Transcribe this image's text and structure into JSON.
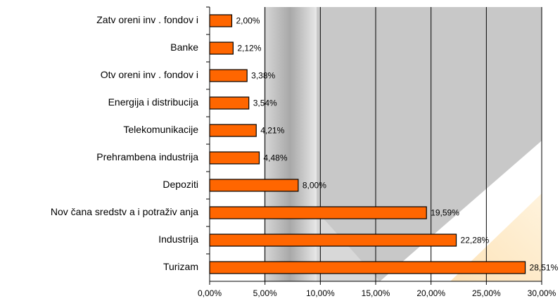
{
  "chart_data": {
    "type": "bar",
    "orientation": "horizontal",
    "categories": [
      "Zatv oreni inv . fondov i",
      "Banke",
      "Otv oreni inv . fondov i",
      "Energija i distribucija",
      "Telekomunikacije",
      "Prehrambena industrija",
      "Depoziti",
      "Nov čana sredstv a i potraživ anja",
      "Industrija",
      "Turizam"
    ],
    "values": [
      2.0,
      2.12,
      3.38,
      3.54,
      4.21,
      4.48,
      8.0,
      19.59,
      22.28,
      28.51
    ],
    "value_labels": [
      "2,00%",
      "2,12%",
      "3,38%",
      "3,54%",
      "4,21%",
      "4,48%",
      "8,00%",
      "19,59%",
      "22,28%",
      "28,51%"
    ],
    "color": "#ff6600",
    "xlim": [
      0,
      30
    ],
    "xticks": [
      {
        "value": 0,
        "label": "0,00%"
      },
      {
        "value": 5,
        "label": "5,00%"
      },
      {
        "value": 10,
        "label": "10,00%"
      },
      {
        "value": 15,
        "label": "15,00%"
      },
      {
        "value": 20,
        "label": "20,00%"
      },
      {
        "value": 25,
        "label": "25,00%"
      },
      {
        "value": 30,
        "label": "30,00%"
      }
    ],
    "grid": true
  }
}
